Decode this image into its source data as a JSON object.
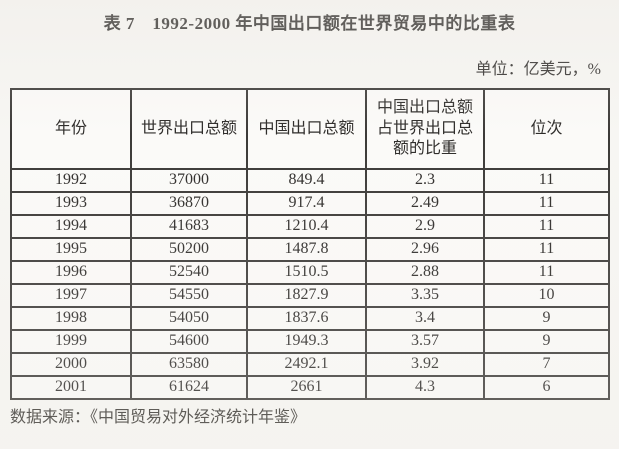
{
  "page": {
    "title": "表 7　1992-2000 年中国出口额在世界贸易中的比重表",
    "unit_label": "单位：亿美元，%",
    "source": "数据来源：《中国贸易对外经济统计年鉴》"
  },
  "table": {
    "columns": [
      "年份",
      "世界出口总额",
      "中国出口总额",
      "中国出口总额\n占世界出口总\n额的比重",
      "位次"
    ],
    "rows": [
      [
        "1992",
        "37000",
        "849.4",
        "2.3",
        "11"
      ],
      [
        "1993",
        "36870",
        "917.4",
        "2.49",
        "11"
      ],
      [
        "1994",
        "41683",
        "1210.4",
        "2.9",
        "11"
      ],
      [
        "1995",
        "50200",
        "1487.8",
        "2.96",
        "11"
      ],
      [
        "1996",
        "52540",
        "1510.5",
        "2.88",
        "11"
      ],
      [
        "1997",
        "54550",
        "1827.9",
        "3.35",
        "10"
      ],
      [
        "1998",
        "54050",
        "1837.6",
        "3.4",
        "9"
      ],
      [
        "1999",
        "54600",
        "1949.3",
        "3.57",
        "9"
      ],
      [
        "2000",
        "63580",
        "2492.1",
        "3.92",
        "7"
      ],
      [
        "2001",
        "61624",
        "2661",
        "4.3",
        "6"
      ]
    ]
  },
  "chart_data": {
    "type": "table",
    "title": "表 7 1992-2000 年中国出口额在世界贸易中的比重表",
    "unit": "亿美元，%",
    "columns": [
      "年份",
      "世界出口总额",
      "中国出口总额",
      "中国出口总额占世界出口总额的比重",
      "位次"
    ],
    "years": [
      1992,
      1993,
      1994,
      1995,
      1996,
      1997,
      1998,
      1999,
      2000,
      2001
    ],
    "world_exports": [
      37000,
      36870,
      41683,
      50200,
      52540,
      54550,
      54050,
      54600,
      63580,
      61624
    ],
    "china_exports": [
      849.4,
      917.4,
      1210.4,
      1487.8,
      1510.5,
      1827.9,
      1837.6,
      1949.3,
      2492.1,
      2661
    ],
    "share_percent": [
      2.3,
      2.49,
      2.9,
      2.96,
      2.88,
      3.35,
      3.4,
      3.57,
      3.92,
      4.3
    ],
    "rank": [
      11,
      11,
      11,
      11,
      11,
      10,
      9,
      9,
      7,
      6
    ],
    "source": "《中国贸易对外经济统计年鉴》"
  },
  "colors": {
    "paper_background": "#f7f6f3",
    "table_border": "#3c3a38",
    "text": "#2e2c2a"
  }
}
